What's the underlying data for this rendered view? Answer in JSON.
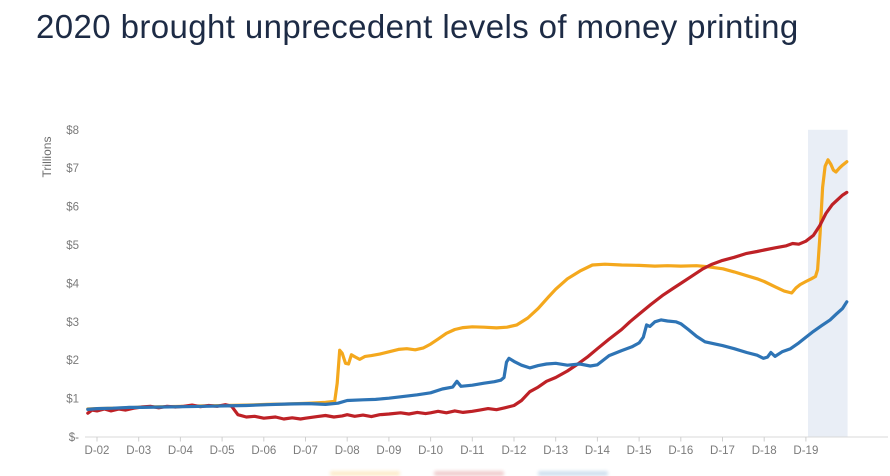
{
  "title": "2020 brought unprecedent levels of money printing",
  "chart_data": {
    "type": "line",
    "ylabel": "Trillions",
    "xlabel": "",
    "grid": false,
    "legend_position": "cropped-below",
    "xlim": [
      2002.6,
      2021.0
    ],
    "ylim": [
      0,
      8
    ],
    "y_ticks": [
      {
        "label": "$8",
        "value": 8
      },
      {
        "label": "$7",
        "value": 7
      },
      {
        "label": "$6",
        "value": 6
      },
      {
        "label": "$5",
        "value": 5
      },
      {
        "label": "$4",
        "value": 4
      },
      {
        "label": "$3",
        "value": 3
      },
      {
        "label": "$2",
        "value": 2
      },
      {
        "label": "$1",
        "value": 1
      },
      {
        "label": "$-",
        "value": 0
      }
    ],
    "x_tick_labels": [
      "D-02",
      "D-03",
      "D-04",
      "D-05",
      "D-06",
      "D-07",
      "D-08",
      "D-09",
      "D-10",
      "D-11",
      "D-12",
      "D-13",
      "D-14",
      "D-15",
      "D-16",
      "D-17",
      "D-18",
      "D-19"
    ],
    "x_first_tick_year": 2002.92,
    "x_tick_interval_years": 1,
    "highlight_band": {
      "from": 2019.97,
      "to": 2020.92,
      "top_value": 8,
      "color": "#E9EEF6"
    },
    "axis_color": "#d8d8d8",
    "tick_text_color": "#7b7b7b",
    "series": [
      {
        "name": "gold",
        "color": "#F4A81D",
        "points": [
          [
            2002.7,
            0.73
          ],
          [
            2002.92,
            0.74
          ],
          [
            2003.3,
            0.75
          ],
          [
            2003.7,
            0.76
          ],
          [
            2004,
            0.78
          ],
          [
            2004.5,
            0.79
          ],
          [
            2005,
            0.8
          ],
          [
            2005.5,
            0.81
          ],
          [
            2006,
            0.82
          ],
          [
            2006.5,
            0.83
          ],
          [
            2007,
            0.85
          ],
          [
            2007.5,
            0.86
          ],
          [
            2008,
            0.88
          ],
          [
            2008.4,
            0.9
          ],
          [
            2008.62,
            0.93
          ],
          [
            2008.68,
            1.4
          ],
          [
            2008.74,
            2.26
          ],
          [
            2008.8,
            2.18
          ],
          [
            2008.88,
            1.92
          ],
          [
            2008.95,
            1.9
          ],
          [
            2009.02,
            2.14
          ],
          [
            2009.12,
            2.08
          ],
          [
            2009.22,
            2.02
          ],
          [
            2009.35,
            2.1
          ],
          [
            2009.5,
            2.12
          ],
          [
            2009.7,
            2.16
          ],
          [
            2009.92,
            2.22
          ],
          [
            2010.15,
            2.28
          ],
          [
            2010.35,
            2.3
          ],
          [
            2010.55,
            2.27
          ],
          [
            2010.75,
            2.32
          ],
          [
            2010.92,
            2.42
          ],
          [
            2011.1,
            2.55
          ],
          [
            2011.3,
            2.7
          ],
          [
            2011.5,
            2.8
          ],
          [
            2011.7,
            2.85
          ],
          [
            2011.92,
            2.87
          ],
          [
            2012.2,
            2.86
          ],
          [
            2012.5,
            2.84
          ],
          [
            2012.75,
            2.86
          ],
          [
            2012.99,
            2.92
          ],
          [
            2013.25,
            3.1
          ],
          [
            2013.5,
            3.35
          ],
          [
            2013.75,
            3.65
          ],
          [
            2013.92,
            3.85
          ],
          [
            2014.2,
            4.12
          ],
          [
            2014.5,
            4.32
          ],
          [
            2014.8,
            4.48
          ],
          [
            2015.1,
            4.5
          ],
          [
            2015.5,
            4.48
          ],
          [
            2015.92,
            4.47
          ],
          [
            2016.3,
            4.45
          ],
          [
            2016.6,
            4.46
          ],
          [
            2016.92,
            4.45
          ],
          [
            2017.3,
            4.46
          ],
          [
            2017.6,
            4.43
          ],
          [
            2017.93,
            4.38
          ],
          [
            2018.2,
            4.3
          ],
          [
            2018.5,
            4.2
          ],
          [
            2018.75,
            4.12
          ],
          [
            2018.92,
            4.05
          ],
          [
            2019.2,
            3.9
          ],
          [
            2019.4,
            3.8
          ],
          [
            2019.58,
            3.75
          ],
          [
            2019.68,
            3.88
          ],
          [
            2019.78,
            3.97
          ],
          [
            2019.92,
            4.05
          ],
          [
            2020.05,
            4.12
          ],
          [
            2020.15,
            4.18
          ],
          [
            2020.2,
            4.36
          ],
          [
            2020.26,
            5.3
          ],
          [
            2020.32,
            6.5
          ],
          [
            2020.38,
            7.05
          ],
          [
            2020.45,
            7.22
          ],
          [
            2020.52,
            7.1
          ],
          [
            2020.58,
            6.95
          ],
          [
            2020.64,
            6.9
          ],
          [
            2020.72,
            7.0
          ],
          [
            2020.8,
            7.08
          ],
          [
            2020.9,
            7.17
          ]
        ]
      },
      {
        "name": "red",
        "color": "#BE2126",
        "points": [
          [
            2002.7,
            0.62
          ],
          [
            2002.8,
            0.7
          ],
          [
            2002.92,
            0.68
          ],
          [
            2003.1,
            0.73
          ],
          [
            2003.25,
            0.68
          ],
          [
            2003.45,
            0.73
          ],
          [
            2003.6,
            0.7
          ],
          [
            2003.8,
            0.75
          ],
          [
            2004,
            0.78
          ],
          [
            2004.2,
            0.8
          ],
          [
            2004.4,
            0.76
          ],
          [
            2004.6,
            0.8
          ],
          [
            2004.8,
            0.78
          ],
          [
            2005,
            0.8
          ],
          [
            2005.2,
            0.83
          ],
          [
            2005.4,
            0.79
          ],
          [
            2005.6,
            0.82
          ],
          [
            2005.8,
            0.8
          ],
          [
            2006,
            0.84
          ],
          [
            2006.15,
            0.8
          ],
          [
            2006.3,
            0.58
          ],
          [
            2006.5,
            0.52
          ],
          [
            2006.7,
            0.54
          ],
          [
            2006.92,
            0.49
          ],
          [
            2007.2,
            0.52
          ],
          [
            2007.4,
            0.47
          ],
          [
            2007.6,
            0.5
          ],
          [
            2007.8,
            0.47
          ],
          [
            2007.92,
            0.49
          ],
          [
            2008.2,
            0.53
          ],
          [
            2008.4,
            0.56
          ],
          [
            2008.6,
            0.52
          ],
          [
            2008.8,
            0.55
          ],
          [
            2008.92,
            0.58
          ],
          [
            2009.1,
            0.54
          ],
          [
            2009.3,
            0.57
          ],
          [
            2009.5,
            0.53
          ],
          [
            2009.7,
            0.58
          ],
          [
            2009.92,
            0.6
          ],
          [
            2010.2,
            0.63
          ],
          [
            2010.4,
            0.6
          ],
          [
            2010.6,
            0.64
          ],
          [
            2010.8,
            0.61
          ],
          [
            2010.92,
            0.63
          ],
          [
            2011.1,
            0.67
          ],
          [
            2011.3,
            0.63
          ],
          [
            2011.5,
            0.68
          ],
          [
            2011.7,
            0.64
          ],
          [
            2011.92,
            0.67
          ],
          [
            2012.1,
            0.7
          ],
          [
            2012.3,
            0.74
          ],
          [
            2012.5,
            0.71
          ],
          [
            2012.7,
            0.76
          ],
          [
            2012.92,
            0.82
          ],
          [
            2013.1,
            0.95
          ],
          [
            2013.3,
            1.18
          ],
          [
            2013.5,
            1.3
          ],
          [
            2013.7,
            1.45
          ],
          [
            2013.92,
            1.55
          ],
          [
            2014.2,
            1.72
          ],
          [
            2014.45,
            1.9
          ],
          [
            2014.7,
            2.1
          ],
          [
            2014.92,
            2.3
          ],
          [
            2015.2,
            2.55
          ],
          [
            2015.5,
            2.8
          ],
          [
            2015.7,
            3.0
          ],
          [
            2015.92,
            3.2
          ],
          [
            2016.2,
            3.45
          ],
          [
            2016.5,
            3.7
          ],
          [
            2016.75,
            3.88
          ],
          [
            2016.92,
            4.0
          ],
          [
            2017.2,
            4.2
          ],
          [
            2017.45,
            4.38
          ],
          [
            2017.67,
            4.5
          ],
          [
            2017.92,
            4.6
          ],
          [
            2018.2,
            4.68
          ],
          [
            2018.5,
            4.78
          ],
          [
            2018.75,
            4.83
          ],
          [
            2018.92,
            4.87
          ],
          [
            2019.2,
            4.93
          ],
          [
            2019.45,
            4.98
          ],
          [
            2019.6,
            5.04
          ],
          [
            2019.75,
            5.02
          ],
          [
            2019.92,
            5.1
          ],
          [
            2020.1,
            5.25
          ],
          [
            2020.25,
            5.5
          ],
          [
            2020.4,
            5.82
          ],
          [
            2020.55,
            6.05
          ],
          [
            2020.7,
            6.2
          ],
          [
            2020.8,
            6.3
          ],
          [
            2020.9,
            6.37
          ]
        ]
      },
      {
        "name": "blue",
        "color": "#2E74B5",
        "points": [
          [
            2002.7,
            0.72
          ],
          [
            2002.92,
            0.74
          ],
          [
            2003.3,
            0.75
          ],
          [
            2003.7,
            0.77
          ],
          [
            2004,
            0.77
          ],
          [
            2004.5,
            0.78
          ],
          [
            2005,
            0.79
          ],
          [
            2005.5,
            0.8
          ],
          [
            2006,
            0.81
          ],
          [
            2006.5,
            0.82
          ],
          [
            2007,
            0.84
          ],
          [
            2007.5,
            0.86
          ],
          [
            2008,
            0.87
          ],
          [
            2008.4,
            0.85
          ],
          [
            2008.7,
            0.88
          ],
          [
            2008.92,
            0.95
          ],
          [
            2009.3,
            0.97
          ],
          [
            2009.6,
            0.98
          ],
          [
            2009.92,
            1.01
          ],
          [
            2010.3,
            1.06
          ],
          [
            2010.6,
            1.1
          ],
          [
            2010.92,
            1.15
          ],
          [
            2011.2,
            1.25
          ],
          [
            2011.45,
            1.3
          ],
          [
            2011.55,
            1.45
          ],
          [
            2011.65,
            1.32
          ],
          [
            2011.92,
            1.35
          ],
          [
            2012.2,
            1.4
          ],
          [
            2012.45,
            1.44
          ],
          [
            2012.6,
            1.48
          ],
          [
            2012.68,
            1.55
          ],
          [
            2012.74,
            1.95
          ],
          [
            2012.8,
            2.05
          ],
          [
            2012.92,
            1.97
          ],
          [
            2013.1,
            1.87
          ],
          [
            2013.3,
            1.8
          ],
          [
            2013.5,
            1.86
          ],
          [
            2013.7,
            1.9
          ],
          [
            2013.92,
            1.92
          ],
          [
            2014.2,
            1.87
          ],
          [
            2014.5,
            1.9
          ],
          [
            2014.75,
            1.85
          ],
          [
            2014.92,
            1.88
          ],
          [
            2015.2,
            2.12
          ],
          [
            2015.5,
            2.25
          ],
          [
            2015.75,
            2.35
          ],
          [
            2015.92,
            2.45
          ],
          [
            2016.02,
            2.6
          ],
          [
            2016.1,
            2.92
          ],
          [
            2016.18,
            2.88
          ],
          [
            2016.3,
            3.0
          ],
          [
            2016.45,
            3.05
          ],
          [
            2016.6,
            3.02
          ],
          [
            2016.8,
            3.0
          ],
          [
            2016.92,
            2.95
          ],
          [
            2017.1,
            2.8
          ],
          [
            2017.3,
            2.62
          ],
          [
            2017.5,
            2.48
          ],
          [
            2017.75,
            2.42
          ],
          [
            2017.92,
            2.38
          ],
          [
            2018.2,
            2.3
          ],
          [
            2018.5,
            2.2
          ],
          [
            2018.75,
            2.13
          ],
          [
            2018.9,
            2.05
          ],
          [
            2019.0,
            2.08
          ],
          [
            2019.08,
            2.2
          ],
          [
            2019.18,
            2.1
          ],
          [
            2019.35,
            2.22
          ],
          [
            2019.55,
            2.3
          ],
          [
            2019.75,
            2.45
          ],
          [
            2019.92,
            2.6
          ],
          [
            2020.1,
            2.75
          ],
          [
            2020.3,
            2.9
          ],
          [
            2020.5,
            3.05
          ],
          [
            2020.65,
            3.2
          ],
          [
            2020.8,
            3.35
          ],
          [
            2020.9,
            3.52
          ]
        ]
      }
    ]
  }
}
